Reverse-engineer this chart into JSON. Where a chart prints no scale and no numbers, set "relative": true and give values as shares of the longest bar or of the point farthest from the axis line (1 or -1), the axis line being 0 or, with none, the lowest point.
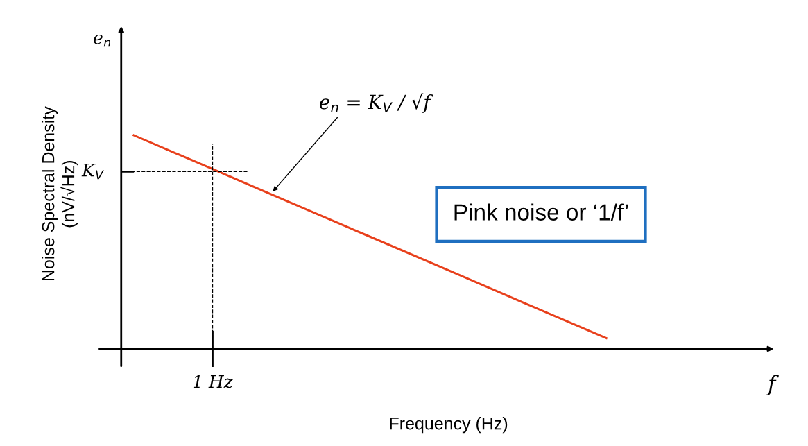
{
  "chart_data": {
    "type": "line",
    "relative": true,
    "xlabel": "Frequency (Hz)",
    "ylabel": "Noise Spectral Density\n(nV/√Hz)",
    "categories": [
      null,
      null,
      null,
      null,
      null,
      null,
      null
    ],
    "series": [
      {
        "color": "#e8401c",
        "values": [
          1,
          0.842,
          0.683,
          0.525,
          0.367,
          0.208,
          0.05
        ]
      }
    ],
    "ref_lines": [
      {
        "axis": "y",
        "value": 0.83,
        "label": "K$_{V}$",
        "color": "#000000",
        "line_style": "dashed"
      }
    ],
    "annotations": [
      "e$_{n}$",
      "f",
      "Pink noise or ‘1/f’",
      "1 Hz",
      "e$_{n}$ = K$_{V}$ / √f"
    ],
    "grid": false,
    "legend": false,
    "marker": "none",
    "line_style": "solid"
  }
}
